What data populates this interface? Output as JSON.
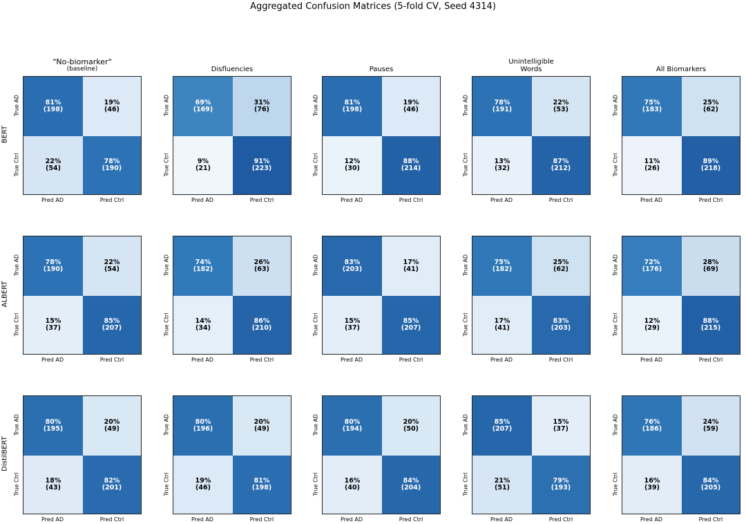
{
  "chart_data": {
    "type": "heatmap",
    "title": "Aggregated Confusion Matrices (5-fold CV, Seed 4314)",
    "x_tick_labels": [
      "Pred AD",
      "Pred Ctrl"
    ],
    "y_tick_labels": [
      "True AD",
      "True Ctrl"
    ],
    "colormap": "Blues",
    "columns": [
      {
        "title": "\"No-biomarker\"",
        "subtitle": "(baseline)"
      },
      {
        "title": "Disfluencies",
        "subtitle": ""
      },
      {
        "title": "Pauses",
        "subtitle": ""
      },
      {
        "title": "Unintelligible Words",
        "subtitle": ""
      },
      {
        "title": "All Biomarkers",
        "subtitle": ""
      }
    ],
    "rows": [
      {
        "model": "BERT",
        "matrices": [
          [
            [
              198,
              46
            ],
            [
              54,
              190
            ]
          ],
          [
            [
              169,
              76
            ],
            [
              21,
              223
            ]
          ],
          [
            [
              198,
              46
            ],
            [
              30,
              214
            ]
          ],
          [
            [
              191,
              53
            ],
            [
              32,
              212
            ]
          ],
          [
            [
              183,
              62
            ],
            [
              26,
              218
            ]
          ]
        ],
        "percents": [
          [
            [
              "81%",
              "19%"
            ],
            [
              "22%",
              "78%"
            ]
          ],
          [
            [
              "69%",
              "31%"
            ],
            [
              "9%",
              "91%"
            ]
          ],
          [
            [
              "81%",
              "19%"
            ],
            [
              "12%",
              "88%"
            ]
          ],
          [
            [
              "78%",
              "22%"
            ],
            [
              "13%",
              "87%"
            ]
          ],
          [
            [
              "75%",
              "25%"
            ],
            [
              "11%",
              "89%"
            ]
          ]
        ]
      },
      {
        "model": "ALBERT",
        "matrices": [
          [
            [
              190,
              54
            ],
            [
              37,
              207
            ]
          ],
          [
            [
              182,
              63
            ],
            [
              34,
              210
            ]
          ],
          [
            [
              203,
              41
            ],
            [
              37,
              207
            ]
          ],
          [
            [
              182,
              62
            ],
            [
              41,
              203
            ]
          ],
          [
            [
              176,
              69
            ],
            [
              29,
              215
            ]
          ]
        ],
        "percents": [
          [
            [
              "78%",
              "22%"
            ],
            [
              "15%",
              "85%"
            ]
          ],
          [
            [
              "74%",
              "26%"
            ],
            [
              "14%",
              "86%"
            ]
          ],
          [
            [
              "83%",
              "17%"
            ],
            [
              "15%",
              "85%"
            ]
          ],
          [
            [
              "75%",
              "25%"
            ],
            [
              "17%",
              "83%"
            ]
          ],
          [
            [
              "72%",
              "28%"
            ],
            [
              "12%",
              "88%"
            ]
          ]
        ]
      },
      {
        "model": "DistilBERT",
        "matrices": [
          [
            [
              195,
              49
            ],
            [
              43,
              201
            ]
          ],
          [
            [
              196,
              49
            ],
            [
              46,
              198
            ]
          ],
          [
            [
              194,
              50
            ],
            [
              40,
              204
            ]
          ],
          [
            [
              207,
              37
            ],
            [
              51,
              193
            ]
          ],
          [
            [
              186,
              59
            ],
            [
              39,
              205
            ]
          ]
        ],
        "percents": [
          [
            [
              "80%",
              "20%"
            ],
            [
              "18%",
              "82%"
            ]
          ],
          [
            [
              "80%",
              "20%"
            ],
            [
              "19%",
              "81%"
            ]
          ],
          [
            [
              "80%",
              "20%"
            ],
            [
              "16%",
              "84%"
            ]
          ],
          [
            [
              "85%",
              "15%"
            ],
            [
              "21%",
              "79%"
            ]
          ],
          [
            [
              "76%",
              "24%"
            ],
            [
              "16%",
              "84%"
            ]
          ]
        ]
      }
    ]
  }
}
